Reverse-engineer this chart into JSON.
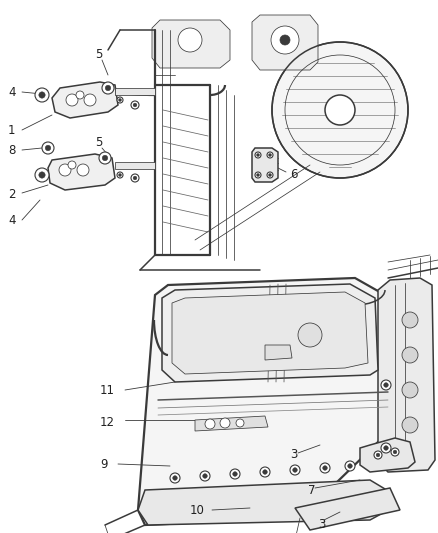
{
  "bg_color": "#ffffff",
  "fig_width": 4.38,
  "fig_height": 5.33,
  "dpi": 100,
  "line_color": "#3a3a3a",
  "label_color": "#222222",
  "label_fontsize": 8.5,
  "lw_main": 1.1,
  "lw_thin": 0.55,
  "lw_thick": 1.6
}
